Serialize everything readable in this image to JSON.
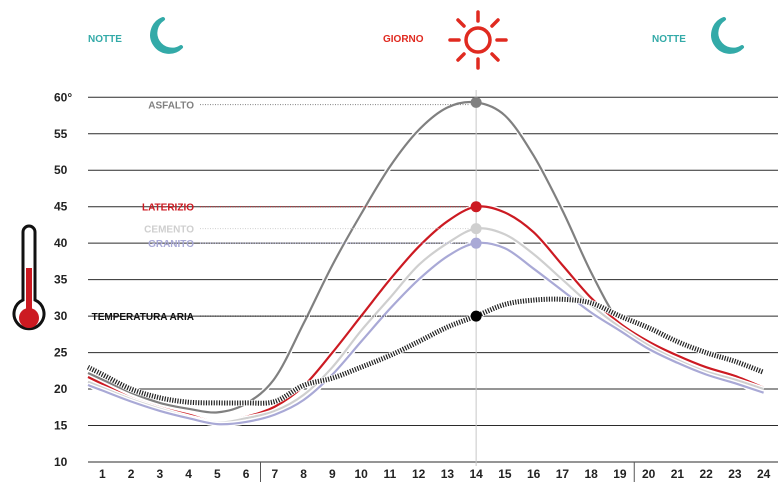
{
  "header": {
    "left_label": "NOTTE",
    "center_label": "GIORNO",
    "right_label": "NOTTE",
    "night_color": "#33aaa8",
    "day_color": "#e02a20"
  },
  "chart_data": {
    "type": "line",
    "x": [
      1,
      2,
      3,
      4,
      5,
      6,
      7,
      8,
      9,
      10,
      11,
      12,
      13,
      14,
      15,
      16,
      17,
      18,
      19,
      20,
      21,
      22,
      23,
      24
    ],
    "xlim": [
      0.5,
      24.5
    ],
    "ylim": [
      10,
      61
    ],
    "y_ticks": [
      10,
      15,
      20,
      25,
      30,
      35,
      40,
      45,
      50,
      55,
      60
    ],
    "y_tick_labels": [
      "10",
      "15",
      "20",
      "25",
      "30",
      "35",
      "40",
      "45",
      "50",
      "55",
      "60°"
    ],
    "night_day_dividers": [
      6.5,
      19.5
    ],
    "highlight_x": 14,
    "grid": true,
    "series": [
      {
        "name": "ASFALTO",
        "color": "#808080",
        "style": "solid",
        "label_y": 59,
        "values": [
          21.3,
          19.5,
          18.1,
          17.3,
          16.8,
          18.0,
          21.5,
          29.0,
          37.0,
          44.0,
          50.5,
          55.5,
          58.6,
          59.3,
          57.5,
          52.0,
          44.5,
          36.0,
          29.0,
          25.5,
          23.5,
          22.0,
          20.8,
          19.8
        ]
      },
      {
        "name": "LATERIZIO",
        "color": "#cc1a22",
        "style": "solid",
        "label_y": 45,
        "values": [
          20.7,
          18.8,
          17.5,
          16.5,
          15.5,
          16.2,
          17.6,
          20.4,
          25.0,
          30.0,
          35.0,
          39.5,
          43.0,
          45.0,
          44.2,
          41.5,
          37.0,
          32.5,
          29.0,
          26.5,
          24.6,
          23.0,
          21.8,
          20.2
        ]
      },
      {
        "name": "CEMENTO",
        "color": "#cfcfcf",
        "style": "solid",
        "label_y": 42,
        "values": [
          20.2,
          18.6,
          17.3,
          16.2,
          15.4,
          16.0,
          17.0,
          19.2,
          23.0,
          28.0,
          32.5,
          37.0,
          40.0,
          42.0,
          41.2,
          38.5,
          35.0,
          31.5,
          28.5,
          26.0,
          24.0,
          22.4,
          21.3,
          20.0
        ]
      },
      {
        "name": "GRANITO",
        "color": "#a9a9d6",
        "style": "solid",
        "label_y": 40,
        "values": [
          19.8,
          18.3,
          17.0,
          16.0,
          15.2,
          15.5,
          16.5,
          18.5,
          22.0,
          26.5,
          31.0,
          35.0,
          38.2,
          40.0,
          39.3,
          36.5,
          33.5,
          30.5,
          28.0,
          25.5,
          23.6,
          22.0,
          20.8,
          19.5
        ]
      },
      {
        "name": "TEMPERATURA ARIA",
        "color": "#222222",
        "style": "hatched",
        "label_y": 30,
        "values": [
          22.0,
          20.0,
          18.8,
          18.2,
          18.1,
          18.1,
          18.3,
          20.5,
          21.5,
          23.0,
          24.6,
          26.5,
          28.5,
          30.0,
          31.6,
          32.2,
          32.3,
          31.8,
          30.0,
          28.4,
          26.5,
          25.0,
          23.8,
          22.3
        ]
      }
    ]
  }
}
